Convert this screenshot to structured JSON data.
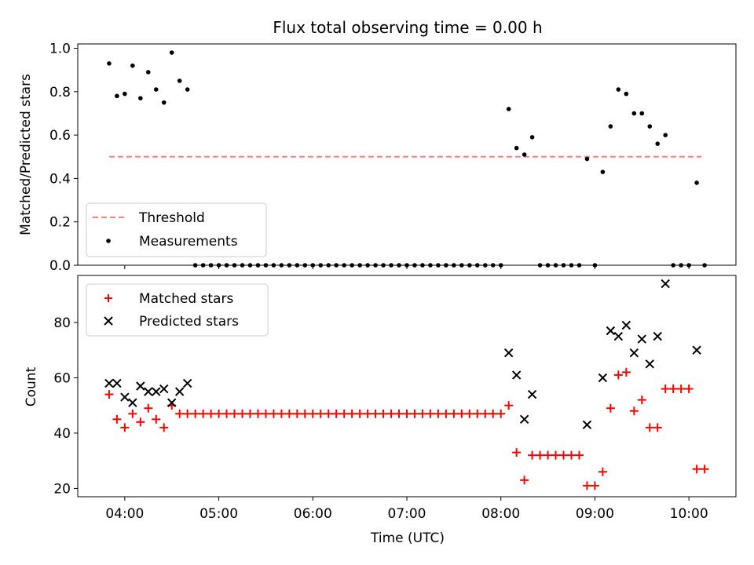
{
  "chart_data": [
    {
      "type": "scatter",
      "title": "Flux total observing time = 0.00 h",
      "xlabel": "",
      "ylabel": "Matched/Predicted stars",
      "xlim": [
        "03:30",
        "10:30"
      ],
      "ylim": [
        0,
        1.02
      ],
      "yticks": [
        "0.0",
        "0.2",
        "0.4",
        "0.6",
        "0.8",
        "1.0"
      ],
      "grid": false,
      "legend": "lower-left",
      "threshold": {
        "name": "Threshold",
        "value": 0.5,
        "x": [
          "03:50",
          "10:08"
        ],
        "color": "#ff7f7f"
      },
      "series": [
        {
          "name": "Measurements",
          "color": "#000000",
          "points": [
            [
              "03:50",
              0.93
            ],
            [
              "03:55",
              0.78
            ],
            [
              "04:00",
              0.79
            ],
            [
              "04:05",
              0.92
            ],
            [
              "04:10",
              0.77
            ],
            [
              "04:15",
              0.89
            ],
            [
              "04:20",
              0.81
            ],
            [
              "04:25",
              0.75
            ],
            [
              "04:30",
              0.98
            ],
            [
              "04:35",
              0.85
            ],
            [
              "04:40",
              0.81
            ],
            [
              "04:45",
              0
            ],
            [
              "04:50",
              0
            ],
            [
              "04:55",
              0
            ],
            [
              "05:00",
              0
            ],
            [
              "05:05",
              0
            ],
            [
              "05:10",
              0
            ],
            [
              "05:15",
              0
            ],
            [
              "05:20",
              0
            ],
            [
              "05:25",
              0
            ],
            [
              "05:30",
              0
            ],
            [
              "05:35",
              0
            ],
            [
              "05:40",
              0
            ],
            [
              "05:45",
              0
            ],
            [
              "05:50",
              0
            ],
            [
              "05:55",
              0
            ],
            [
              "06:00",
              0
            ],
            [
              "06:05",
              0
            ],
            [
              "06:10",
              0
            ],
            [
              "06:15",
              0
            ],
            [
              "06:20",
              0
            ],
            [
              "06:25",
              0
            ],
            [
              "06:30",
              0
            ],
            [
              "06:35",
              0
            ],
            [
              "06:40",
              0
            ],
            [
              "06:45",
              0
            ],
            [
              "06:50",
              0
            ],
            [
              "06:55",
              0
            ],
            [
              "07:00",
              0
            ],
            [
              "07:05",
              0
            ],
            [
              "07:10",
              0
            ],
            [
              "07:15",
              0
            ],
            [
              "07:20",
              0
            ],
            [
              "07:25",
              0
            ],
            [
              "07:30",
              0
            ],
            [
              "07:35",
              0
            ],
            [
              "07:40",
              0
            ],
            [
              "07:45",
              0
            ],
            [
              "07:50",
              0
            ],
            [
              "07:55",
              0
            ],
            [
              "08:00",
              0
            ],
            [
              "08:05",
              0.72
            ],
            [
              "08:10",
              0.54
            ],
            [
              "08:15",
              0.51
            ],
            [
              "08:20",
              0.59
            ],
            [
              "08:25",
              0
            ],
            [
              "08:30",
              0
            ],
            [
              "08:35",
              0
            ],
            [
              "08:40",
              0
            ],
            [
              "08:45",
              0
            ],
            [
              "08:50",
              0
            ],
            [
              "08:55",
              0.49
            ],
            [
              "09:00",
              0
            ],
            [
              "09:05",
              0.43
            ],
            [
              "09:10",
              0.64
            ],
            [
              "09:15",
              0.81
            ],
            [
              "09:20",
              0.79
            ],
            [
              "09:25",
              0.7
            ],
            [
              "09:30",
              0.7
            ],
            [
              "09:35",
              0.64
            ],
            [
              "09:40",
              0.56
            ],
            [
              "09:45",
              0.6
            ],
            [
              "09:50",
              0
            ],
            [
              "09:55",
              0
            ],
            [
              "10:00",
              0
            ],
            [
              "10:05",
              0.38
            ],
            [
              "10:10",
              0
            ]
          ]
        }
      ]
    },
    {
      "type": "scatter",
      "title": "",
      "xlabel": "Time (UTC)",
      "ylabel": "Count",
      "xlim": [
        "03:30",
        "10:30"
      ],
      "ylim": [
        17,
        97
      ],
      "xticks": [
        "04:00",
        "05:00",
        "06:00",
        "07:00",
        "08:00",
        "09:00",
        "10:00"
      ],
      "yticks": [
        "20",
        "40",
        "60",
        "80"
      ],
      "grid": false,
      "legend": "top-left",
      "series": [
        {
          "name": "Matched stars",
          "marker": "+",
          "color": "#ff0000",
          "points": [
            [
              "03:50",
              54
            ],
            [
              "03:55",
              45
            ],
            [
              "04:00",
              42
            ],
            [
              "04:05",
              47
            ],
            [
              "04:10",
              44
            ],
            [
              "04:15",
              49
            ],
            [
              "04:20",
              45
            ],
            [
              "04:25",
              42
            ],
            [
              "04:30",
              50
            ],
            [
              "04:35",
              47
            ],
            [
              "04:40",
              47
            ],
            [
              "04:45",
              47
            ],
            [
              "04:50",
              47
            ],
            [
              "04:55",
              47
            ],
            [
              "05:00",
              47
            ],
            [
              "05:05",
              47
            ],
            [
              "05:10",
              47
            ],
            [
              "05:15",
              47
            ],
            [
              "05:20",
              47
            ],
            [
              "05:25",
              47
            ],
            [
              "05:30",
              47
            ],
            [
              "05:35",
              47
            ],
            [
              "05:40",
              47
            ],
            [
              "05:45",
              47
            ],
            [
              "05:50",
              47
            ],
            [
              "05:55",
              47
            ],
            [
              "06:00",
              47
            ],
            [
              "06:05",
              47
            ],
            [
              "06:10",
              47
            ],
            [
              "06:15",
              47
            ],
            [
              "06:20",
              47
            ],
            [
              "06:25",
              47
            ],
            [
              "06:30",
              47
            ],
            [
              "06:35",
              47
            ],
            [
              "06:40",
              47
            ],
            [
              "06:45",
              47
            ],
            [
              "06:50",
              47
            ],
            [
              "06:55",
              47
            ],
            [
              "07:00",
              47
            ],
            [
              "07:05",
              47
            ],
            [
              "07:10",
              47
            ],
            [
              "07:15",
              47
            ],
            [
              "07:20",
              47
            ],
            [
              "07:25",
              47
            ],
            [
              "07:30",
              47
            ],
            [
              "07:35",
              47
            ],
            [
              "07:40",
              47
            ],
            [
              "07:45",
              47
            ],
            [
              "07:50",
              47
            ],
            [
              "07:55",
              47
            ],
            [
              "08:00",
              47
            ],
            [
              "08:05",
              50
            ],
            [
              "08:10",
              33
            ],
            [
              "08:15",
              23
            ],
            [
              "08:20",
              32
            ],
            [
              "08:25",
              32
            ],
            [
              "08:30",
              32
            ],
            [
              "08:35",
              32
            ],
            [
              "08:40",
              32
            ],
            [
              "08:45",
              32
            ],
            [
              "08:50",
              32
            ],
            [
              "08:55",
              21
            ],
            [
              "09:00",
              21
            ],
            [
              "09:05",
              26
            ],
            [
              "09:10",
              49
            ],
            [
              "09:15",
              61
            ],
            [
              "09:20",
              62
            ],
            [
              "09:25",
              48
            ],
            [
              "09:30",
              52
            ],
            [
              "09:35",
              42
            ],
            [
              "09:40",
              42
            ],
            [
              "09:45",
              56
            ],
            [
              "09:50",
              56
            ],
            [
              "09:55",
              56
            ],
            [
              "10:00",
              56
            ],
            [
              "10:05",
              27
            ],
            [
              "10:10",
              27
            ]
          ]
        },
        {
          "name": "Predicted stars",
          "marker": "x",
          "color": "#000000",
          "points": [
            [
              "03:50",
              58
            ],
            [
              "03:55",
              58
            ],
            [
              "04:00",
              53
            ],
            [
              "04:05",
              51
            ],
            [
              "04:10",
              57
            ],
            [
              "04:15",
              55
            ],
            [
              "04:20",
              55
            ],
            [
              "04:25",
              56
            ],
            [
              "04:30",
              51
            ],
            [
              "04:35",
              55
            ],
            [
              "04:40",
              58
            ],
            [
              "08:05",
              69
            ],
            [
              "08:10",
              61
            ],
            [
              "08:15",
              45
            ],
            [
              "08:20",
              54
            ],
            [
              "08:55",
              43
            ],
            [
              "09:05",
              60
            ],
            [
              "09:10",
              77
            ],
            [
              "09:15",
              75
            ],
            [
              "09:20",
              79
            ],
            [
              "09:25",
              69
            ],
            [
              "09:30",
              74
            ],
            [
              "09:35",
              65
            ],
            [
              "09:40",
              75
            ],
            [
              "09:45",
              94
            ],
            [
              "10:05",
              70
            ]
          ]
        }
      ]
    }
  ]
}
